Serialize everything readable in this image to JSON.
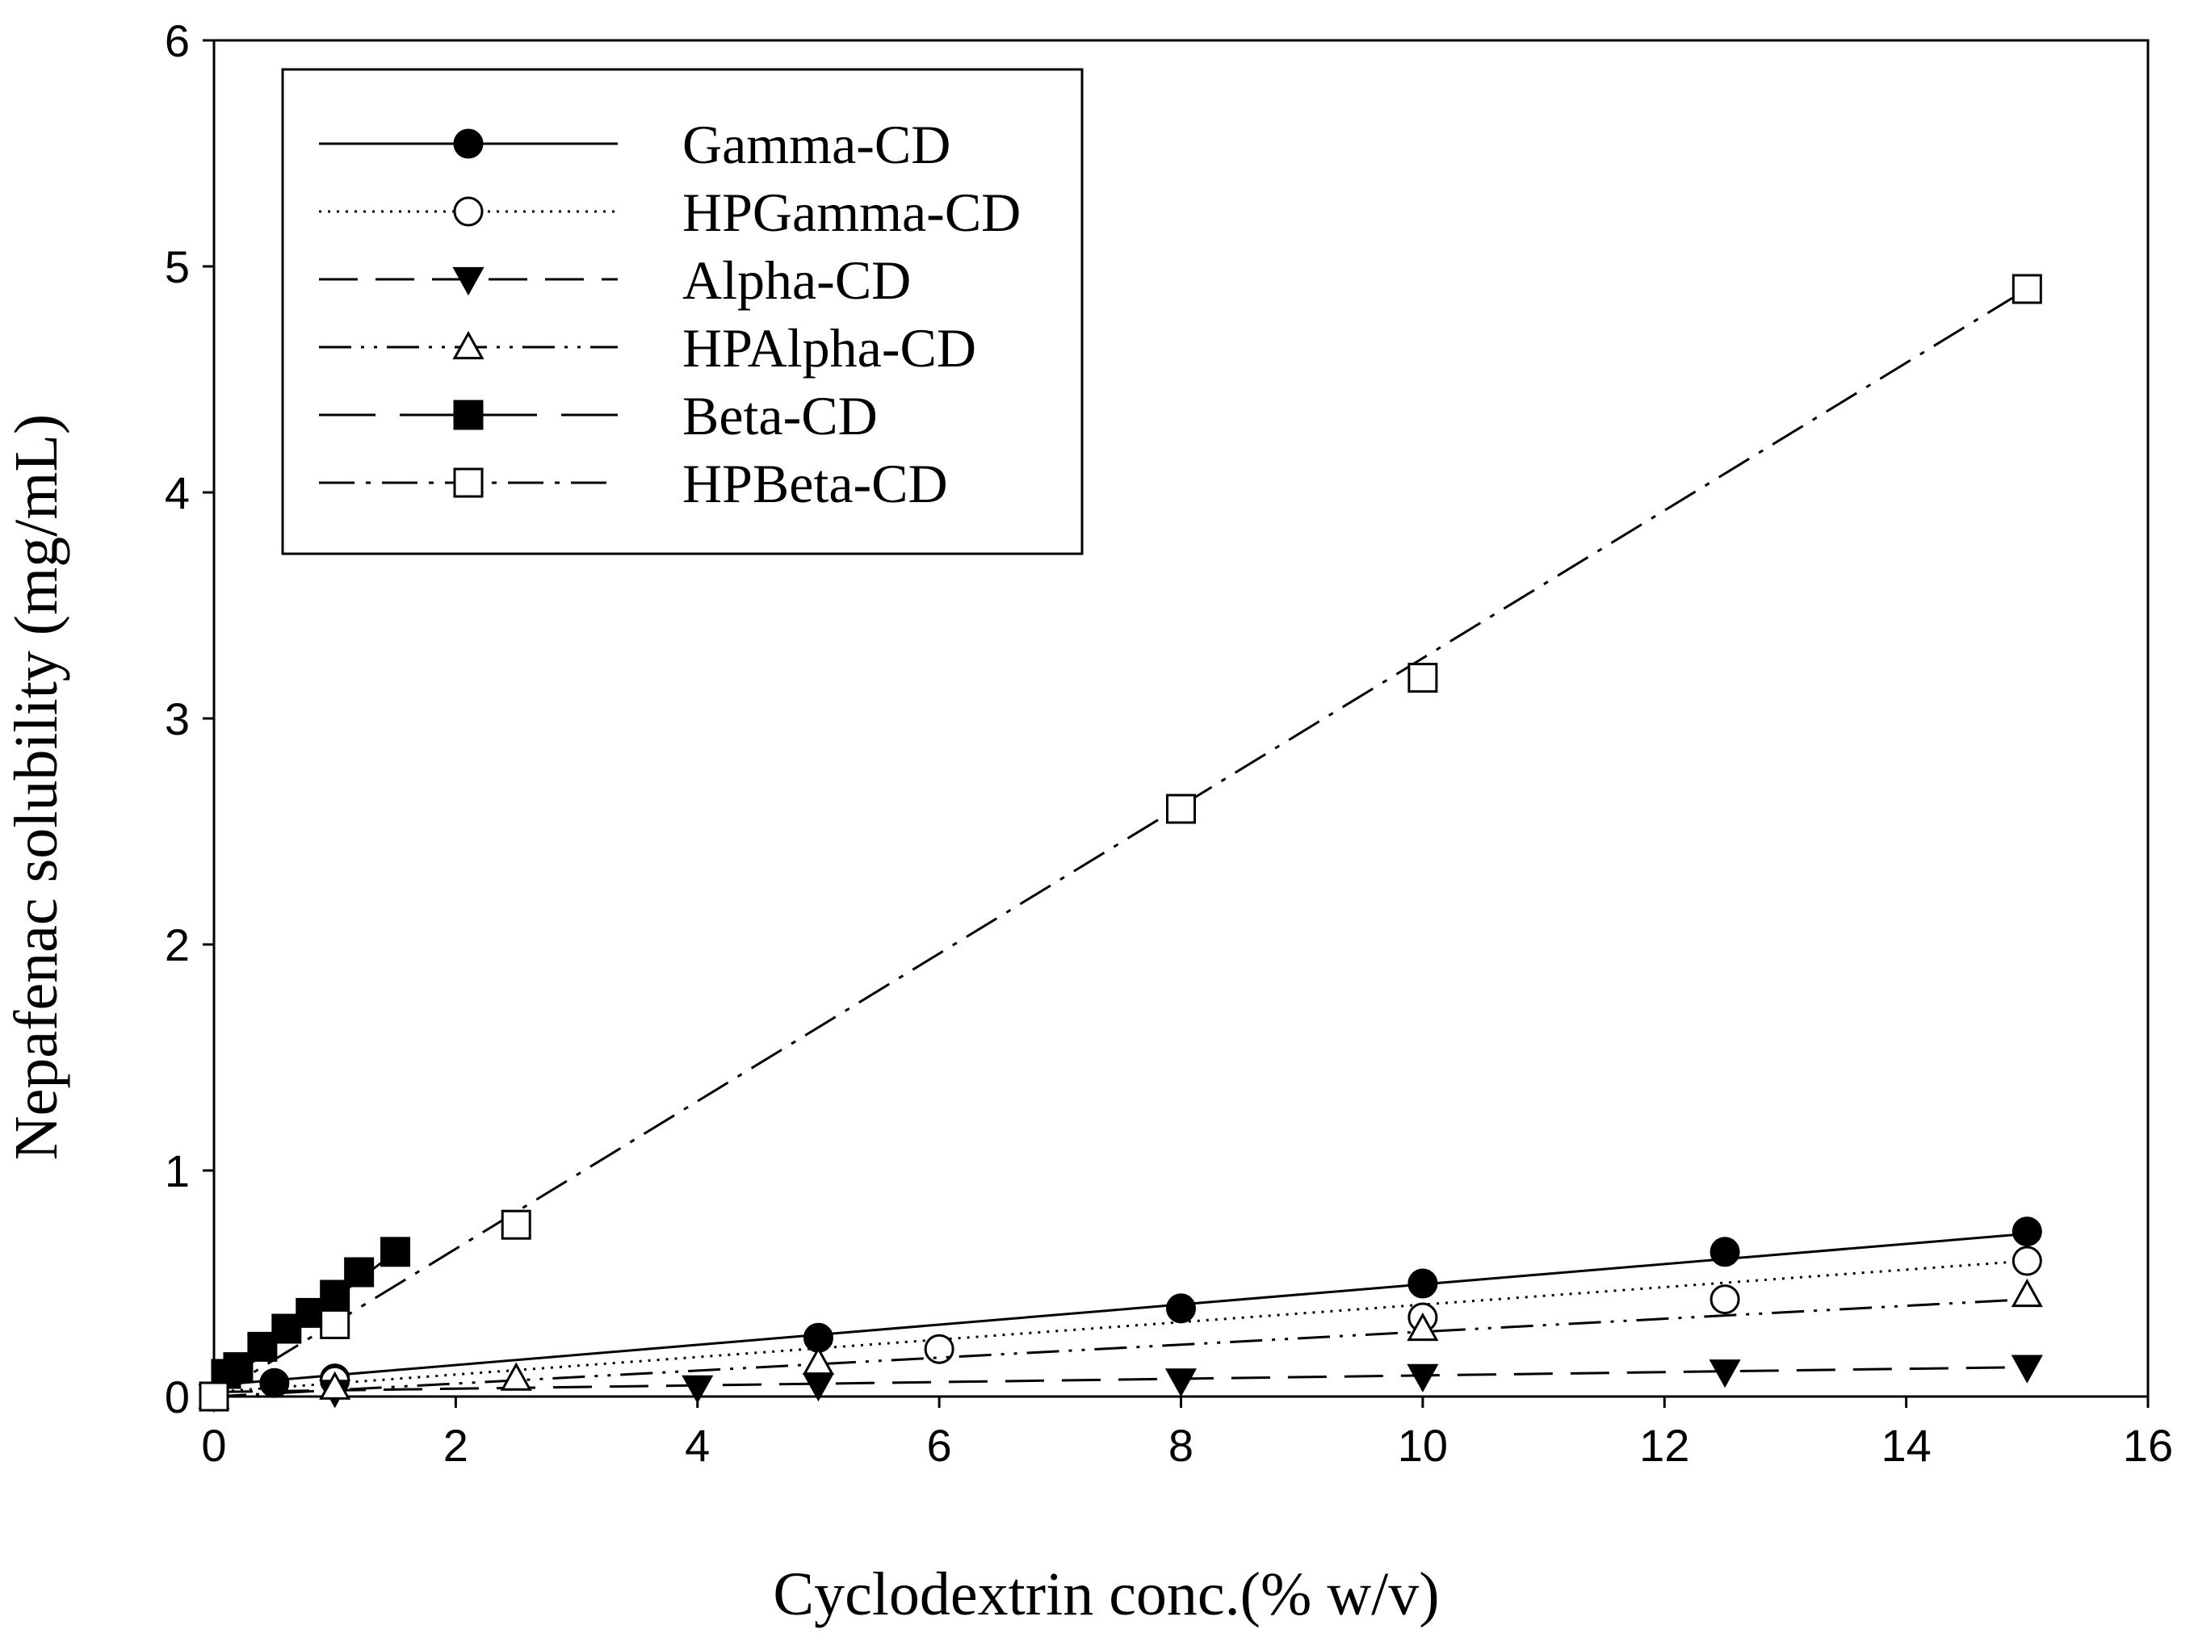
{
  "chart_data": {
    "type": "line",
    "title": "",
    "xlabel": "Cyclodextrin conc.(% w/v)",
    "ylabel": "Nepafenac solubility (mg/mL)",
    "xlim": [
      0,
      16
    ],
    "ylim": [
      0,
      6
    ],
    "xticks": [
      0,
      2,
      4,
      6,
      8,
      10,
      12,
      14,
      16
    ],
    "yticks": [
      0,
      1,
      2,
      3,
      4,
      5,
      6
    ],
    "grid": false,
    "legend_position": "top-left",
    "series": [
      {
        "name": "Gamma-CD",
        "marker": "circle-filled",
        "dash": "solid",
        "points": [
          [
            0,
            0.0
          ],
          [
            0.5,
            0.06
          ],
          [
            1,
            0.08
          ],
          [
            5,
            0.26
          ],
          [
            8,
            0.39
          ],
          [
            10,
            0.5
          ],
          [
            12.5,
            0.64
          ],
          [
            15,
            0.73
          ]
        ],
        "fit": [
          [
            0,
            0.05
          ],
          [
            15,
            0.72
          ]
        ]
      },
      {
        "name": "HPGamma-CD",
        "marker": "circle-open",
        "dash": "dotted",
        "points": [
          [
            0,
            0.0
          ],
          [
            1,
            0.07
          ],
          [
            6,
            0.21
          ],
          [
            10,
            0.35
          ],
          [
            12.5,
            0.43
          ],
          [
            15,
            0.6
          ]
        ],
        "fit": [
          [
            0,
            0.02
          ],
          [
            15,
            0.6
          ]
        ]
      },
      {
        "name": "Alpha-CD",
        "marker": "triangle-down-filled",
        "dash": "long-dash",
        "points": [
          [
            0,
            0.0
          ],
          [
            1,
            0.02
          ],
          [
            4,
            0.04
          ],
          [
            5,
            0.05
          ],
          [
            8,
            0.07
          ],
          [
            10,
            0.09
          ],
          [
            12.5,
            0.11
          ],
          [
            15,
            0.13
          ]
        ],
        "fit": [
          [
            0,
            0.02
          ],
          [
            15,
            0.13
          ]
        ]
      },
      {
        "name": "HPAlpha-CD",
        "marker": "triangle-up-open",
        "dash": "dash-dot-dot",
        "points": [
          [
            0,
            0.0
          ],
          [
            1,
            0.04
          ],
          [
            2.5,
            0.08
          ],
          [
            5,
            0.15
          ],
          [
            10,
            0.3
          ],
          [
            15,
            0.45
          ]
        ],
        "fit": [
          [
            0,
            0.0
          ],
          [
            15,
            0.43
          ]
        ]
      },
      {
        "name": "Beta-CD",
        "marker": "square-filled",
        "dash": "long-dash-wide",
        "points": [
          [
            0,
            0.0
          ],
          [
            0.1,
            0.1
          ],
          [
            0.2,
            0.13
          ],
          [
            0.4,
            0.22
          ],
          [
            0.6,
            0.3
          ],
          [
            0.8,
            0.37
          ],
          [
            1.0,
            0.45
          ],
          [
            1.2,
            0.55
          ],
          [
            1.5,
            0.64
          ]
        ],
        "fit": [
          [
            0,
            0.02
          ],
          [
            1.5,
            0.64
          ]
        ]
      },
      {
        "name": "HPBeta-CD",
        "marker": "square-open",
        "dash": "dash-dot",
        "points": [
          [
            0,
            0.0
          ],
          [
            1,
            0.32
          ],
          [
            2.5,
            0.76
          ],
          [
            8,
            2.6
          ],
          [
            10,
            3.18
          ],
          [
            15,
            4.9
          ]
        ],
        "fit": [
          [
            0,
            0.0
          ],
          [
            15,
            4.9
          ]
        ]
      }
    ]
  }
}
